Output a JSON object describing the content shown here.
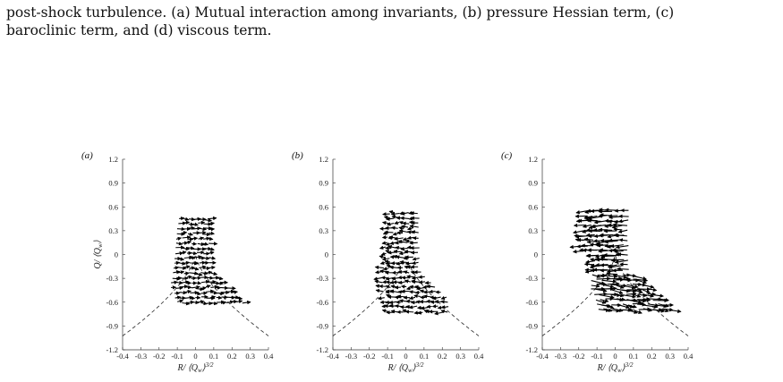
{
  "caption": {
    "line1": "post-shock turbulence. (a) Mutual interaction among invariants, (b) pressure Hessian term, (c)",
    "line2": "baroclinic term, and (d) viscous term."
  },
  "chart_data": [
    {
      "type": "scatter",
      "panel_label": "(a)",
      "xlabel": "R/ ⟨Q_w⟩^{3/2}",
      "ylabel": "Q/ ⟨Q_w⟩",
      "xlim": [
        -0.4,
        0.4
      ],
      "ylim": [
        -1.2,
        1.2
      ],
      "xticks": [
        "-0.4",
        "-0.3",
        "-0.2",
        "-0.1",
        "0",
        "0.1",
        "0.2",
        "0.3",
        "0.4"
      ],
      "yticks": [
        "1.2",
        "0.9",
        "0.6",
        "0.3",
        "0",
        "-0.3",
        "-0.6",
        "-0.9",
        "-1.2"
      ],
      "field": "short arrows mostly pointing right, ending near x=0.25",
      "domain": {
        "q_top": 0.45,
        "q_bottom": -0.62,
        "x_right_tip": 0.27
      }
    },
    {
      "type": "scatter",
      "panel_label": "(b)",
      "xlabel": "R/ ⟨Q_w⟩^{3/2}",
      "ylabel": "",
      "xlim": [
        -0.4,
        0.4
      ],
      "ylim": [
        -1.2,
        1.2
      ],
      "xticks": [
        "-0.4",
        "-0.3",
        "-0.2",
        "-0.1",
        "0",
        "0.1",
        "0.2",
        "0.3",
        "0.4"
      ],
      "yticks": [
        "1.2",
        "0.9",
        "0.6",
        "0.3",
        "0",
        "-0.3",
        "-0.6",
        "-0.9",
        "-1.2"
      ],
      "field": "arrows pointing mostly left",
      "domain": {
        "q_top": 0.52,
        "q_bottom": -0.75,
        "x_right_tip": 0.23
      }
    },
    {
      "type": "scatter",
      "panel_label": "(c)",
      "xlabel": "R/ ⟨Q_w⟩^{3/2}",
      "ylabel": "",
      "xlim": [
        -0.4,
        0.4
      ],
      "ylim": [
        -1.2,
        1.2
      ],
      "xticks": [
        "-0.4",
        "-0.3",
        "-0.2",
        "-0.1",
        "0",
        "0.1",
        "0.2",
        "0.3",
        "0.4"
      ],
      "yticks": [
        "1.2",
        "0.9",
        "0.6",
        "0.3",
        "0",
        "-0.3",
        "-0.6",
        "-0.9",
        "-1.2"
      ],
      "field": "longer arrows, left pointing in top half, right pointing in bottom tail",
      "domain": {
        "q_top": 0.55,
        "q_bottom": -0.75,
        "x_right_tip": 0.32
      }
    }
  ]
}
